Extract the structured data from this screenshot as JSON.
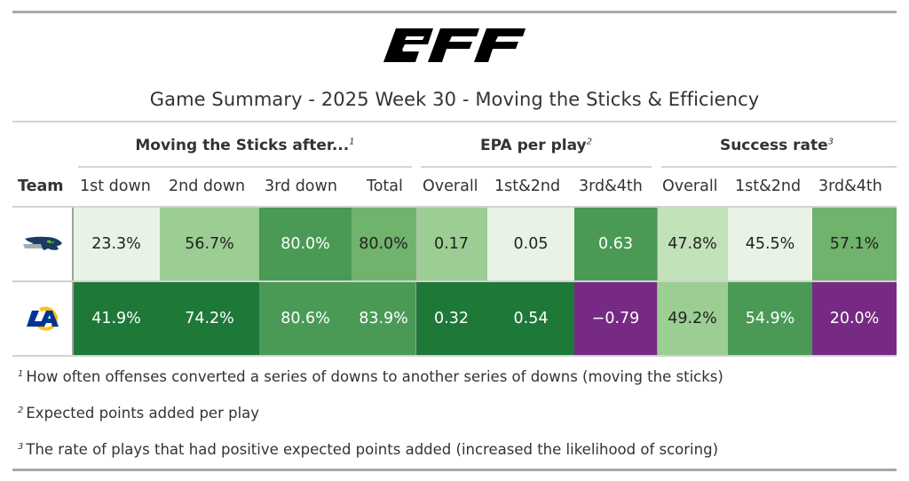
{
  "header": {
    "brand": "PFF",
    "title": "Game Summary - 2025 Week 30 - Moving the Sticks & Efficiency"
  },
  "spanners": [
    {
      "label": "Moving the Sticks after...",
      "note": "1"
    },
    {
      "label": "EPA per play",
      "note": "2"
    },
    {
      "label": "Success rate",
      "note": "3"
    }
  ],
  "columns": {
    "team": "Team",
    "labels": [
      "1st down",
      "2nd down",
      "3rd down",
      "Total",
      "Overall",
      "1st&2nd",
      "3rd&4th",
      "Overall",
      "1st&2nd",
      "3rd&4th"
    ]
  },
  "colors": {
    "very_light_green": "#e8f3e6",
    "light_green": "#c2e2b9",
    "pale_green": "#9ccd93",
    "mid_green": "#6fb36c",
    "green": "#4a9a55",
    "dark_green": "#1e7838",
    "purple": "#762a83"
  },
  "chart_data": {
    "type": "table",
    "title": "Game Summary - 2025 Week 30 - Moving the Sticks & Efficiency",
    "column_groups": [
      {
        "name": "Moving the Sticks after...",
        "columns": [
          "1st down",
          "2nd down",
          "3rd down",
          "Total"
        ]
      },
      {
        "name": "EPA per play",
        "columns": [
          "Overall",
          "1st&2nd",
          "3rd&4th"
        ]
      },
      {
        "name": "Success rate",
        "columns": [
          "Overall",
          "1st&2nd",
          "3rd&4th"
        ]
      }
    ],
    "rows": [
      {
        "team": "Seattle Seahawks",
        "logo": "seahawks-logo",
        "values": [
          "23.3%",
          "56.7%",
          "80.0%",
          "80.0%",
          "0.17",
          "0.05",
          "0.63",
          "47.8%",
          "45.5%",
          "57.1%"
        ],
        "fills": [
          "very_light_green",
          "pale_green",
          "green",
          "mid_green",
          "pale_green",
          "very_light_green",
          "green",
          "light_green",
          "very_light_green",
          "mid_green"
        ],
        "text_light": [
          false,
          false,
          true,
          false,
          false,
          false,
          true,
          false,
          false,
          false
        ]
      },
      {
        "team": "Los Angeles Rams",
        "logo": "rams-logo",
        "values": [
          "41.9%",
          "74.2%",
          "80.6%",
          "83.9%",
          "0.32",
          "0.54",
          "−0.79",
          "49.2%",
          "54.9%",
          "20.0%"
        ],
        "fills": [
          "dark_green",
          "dark_green",
          "green",
          "green",
          "dark_green",
          "dark_green",
          "purple",
          "pale_green",
          "green",
          "purple"
        ],
        "text_light": [
          true,
          true,
          true,
          true,
          true,
          true,
          true,
          false,
          true,
          true
        ]
      }
    ]
  },
  "footnotes": [
    {
      "mark": "1",
      "text": "How often offenses converted a series of downs to another series of downs (moving the sticks)"
    },
    {
      "mark": "2",
      "text": "Expected points added per play"
    },
    {
      "mark": "3",
      "text": "The rate of plays that had positive expected points added (increased the likelihood of scoring)"
    }
  ]
}
